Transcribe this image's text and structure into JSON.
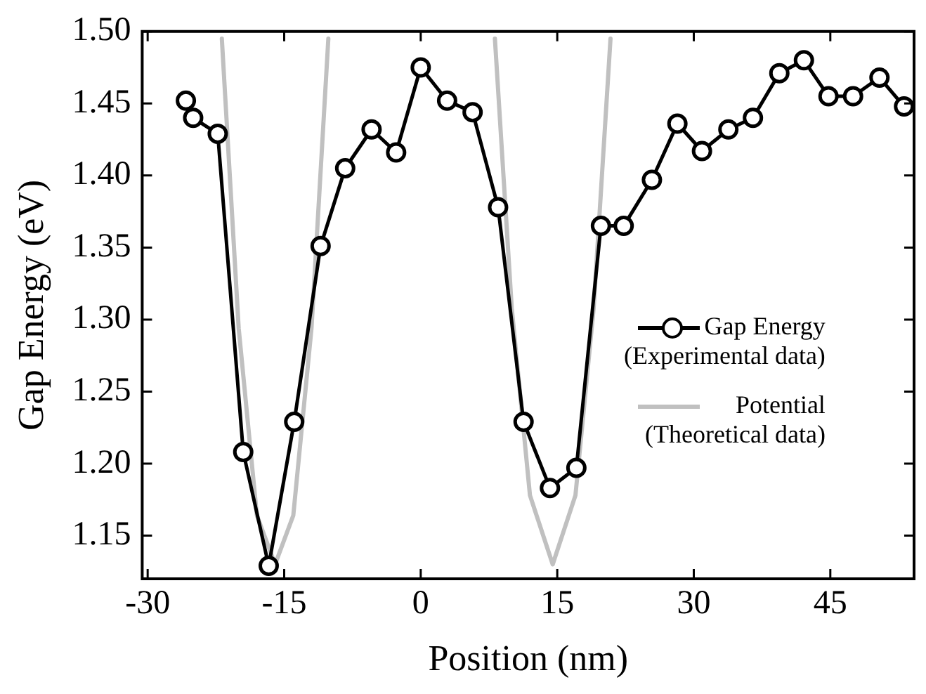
{
  "chart_data": {
    "type": "line",
    "xlabel": "Position (nm)",
    "ylabel": "Gap Energy (eV)",
    "xlim": [
      -30.6,
      54.2
    ],
    "xticks": [
      -30,
      -15,
      0,
      15,
      30,
      45
    ],
    "ylim": [
      1.12,
      1.5
    ],
    "yticks": [
      {
        "value": 1.15,
        "label": "1.15"
      },
      {
        "value": 1.2,
        "label": "1.20"
      },
      {
        "value": 1.25,
        "label": "1.25"
      },
      {
        "value": 1.3,
        "label": "1.30"
      },
      {
        "value": 1.35,
        "label": "1.35"
      },
      {
        "value": 1.4,
        "label": "1.40"
      },
      {
        "value": 1.45,
        "label": "1.45"
      },
      {
        "value": 1.5,
        "label": "1.50"
      }
    ],
    "grid": false,
    "legend": "right",
    "series": [
      {
        "name": "Gap Energy\n(Experimental data)",
        "color": "#000000",
        "marker": "circle",
        "x": [
          -25.8,
          -25,
          -22.3,
          -19.5,
          -16.7,
          -13.9,
          -11,
          -8.3,
          -5.4,
          -2.7,
          0,
          2.9,
          5.7,
          8.5,
          11.3,
          14.2,
          17.1,
          19.8,
          22.3,
          25.4,
          28.2,
          30.9,
          33.8,
          36.5,
          39.4,
          42.1,
          44.8,
          47.5,
          50.4,
          53.1
        ],
        "values": [
          1.452,
          1.44,
          1.429,
          1.208,
          1.129,
          1.229,
          1.351,
          1.405,
          1.432,
          1.416,
          1.475,
          1.452,
          1.444,
          1.378,
          1.229,
          1.183,
          1.197,
          1.365,
          1.365,
          1.397,
          1.436,
          1.417,
          1.432,
          1.44,
          1.471,
          1.48,
          1.455,
          1.455,
          1.468,
          1.448
        ]
      },
      {
        "name": "Potential\n(Theoretical data)",
        "color": "#c0c0c0",
        "marker": "none",
        "x": [
          -21.85,
          -20,
          -18,
          -16,
          -14,
          -12,
          -10.15,
          0,
          8.15,
          10,
          12,
          14.5,
          17,
          19,
          20.85
        ],
        "values": [
          1.495,
          1.294,
          1.164,
          1.13,
          1.164,
          1.294,
          1.495,
          null,
          1.495,
          1.308,
          1.178,
          1.13,
          1.178,
          1.308,
          1.495
        ]
      }
    ]
  }
}
